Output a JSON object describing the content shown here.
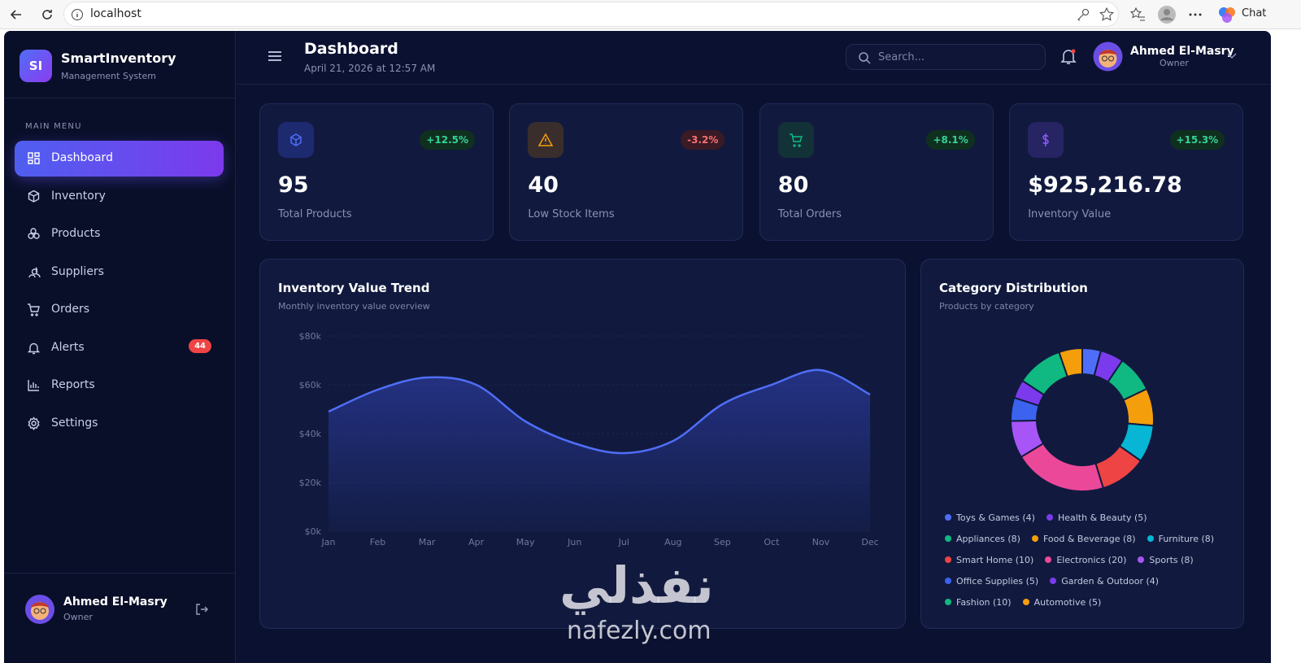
{
  "browser": {
    "url": "localhost",
    "chat": "Chat"
  },
  "sidebar": {
    "logo": "SI",
    "brand": "SmartInventory",
    "tagline": "Management System",
    "menu_label": "MAIN MENU",
    "items": [
      {
        "label": "Dashboard"
      },
      {
        "label": "Inventory"
      },
      {
        "label": "Products"
      },
      {
        "label": "Suppliers"
      },
      {
        "label": "Orders"
      },
      {
        "label": "Alerts",
        "badge": "44"
      },
      {
        "label": "Reports"
      },
      {
        "label": "Settings"
      }
    ],
    "user": {
      "name": "Ahmed El-Masry",
      "role": "Owner"
    }
  },
  "header": {
    "title": "Dashboard",
    "date": "April 21, 2026 at 12:57 AM",
    "search_placeholder": "Search...",
    "user": {
      "name": "Ahmed El-Masry",
      "role": "Owner"
    }
  },
  "stats": [
    {
      "value": "95",
      "label": "Total Products",
      "change": "+12.5%"
    },
    {
      "value": "40",
      "label": "Low Stock Items",
      "change": "-3.2%"
    },
    {
      "value": "80",
      "label": "Total Orders",
      "change": "+8.1%"
    },
    {
      "value": "$925,216.78",
      "label": "Inventory Value",
      "change": "+15.3%"
    }
  ],
  "chart_data": [
    {
      "type": "line",
      "title": "Inventory Value Trend",
      "subtitle": "Monthly inventory value overview",
      "categories": [
        "Jan",
        "Feb",
        "Mar",
        "Apr",
        "May",
        "Jun",
        "Jul",
        "Aug",
        "Sep",
        "Oct",
        "Nov",
        "Dec"
      ],
      "values": [
        49000,
        58000,
        63000,
        60000,
        45000,
        36000,
        32000,
        37000,
        52000,
        60000,
        66000,
        56000
      ],
      "color": "#4f6ef7",
      "ylim": [
        0,
        80000
      ],
      "yticks": [
        {
          "value": 0,
          "label": "$0k"
        },
        {
          "value": 20000,
          "label": "$20k"
        },
        {
          "value": 40000,
          "label": "$40k"
        },
        {
          "value": 60000,
          "label": "$60k"
        },
        {
          "value": 80000,
          "label": "$80k"
        }
      ],
      "grid": true
    },
    {
      "type": "doughnut",
      "title": "Category Distribution",
      "subtitle": "Products by category",
      "categories": [
        "Toys & Games (4)",
        "Health & Beauty (5)",
        "Appliances (8)",
        "Food & Beverage (8)",
        "Furniture (8)",
        "Smart Home (10)",
        "Electronics (20)",
        "Sports (8)",
        "Office Supplies (5)",
        "Garden & Outdoor (4)",
        "Fashion (10)",
        "Automotive (5)"
      ],
      "values": [
        4,
        5,
        8,
        8,
        8,
        10,
        20,
        8,
        5,
        4,
        10,
        5
      ],
      "colors": [
        "#4f6ef7",
        "#7c3aed",
        "#10b981",
        "#f59e0b",
        "#06b6d4",
        "#ef4444",
        "#ec4899",
        "#a855f7",
        "#3b63f0",
        "#7c3aed",
        "#10b981",
        "#f59e0b"
      ]
    }
  ],
  "watermark": {
    "arabic": "نفذلي",
    "latin": "nafezly.com"
  }
}
